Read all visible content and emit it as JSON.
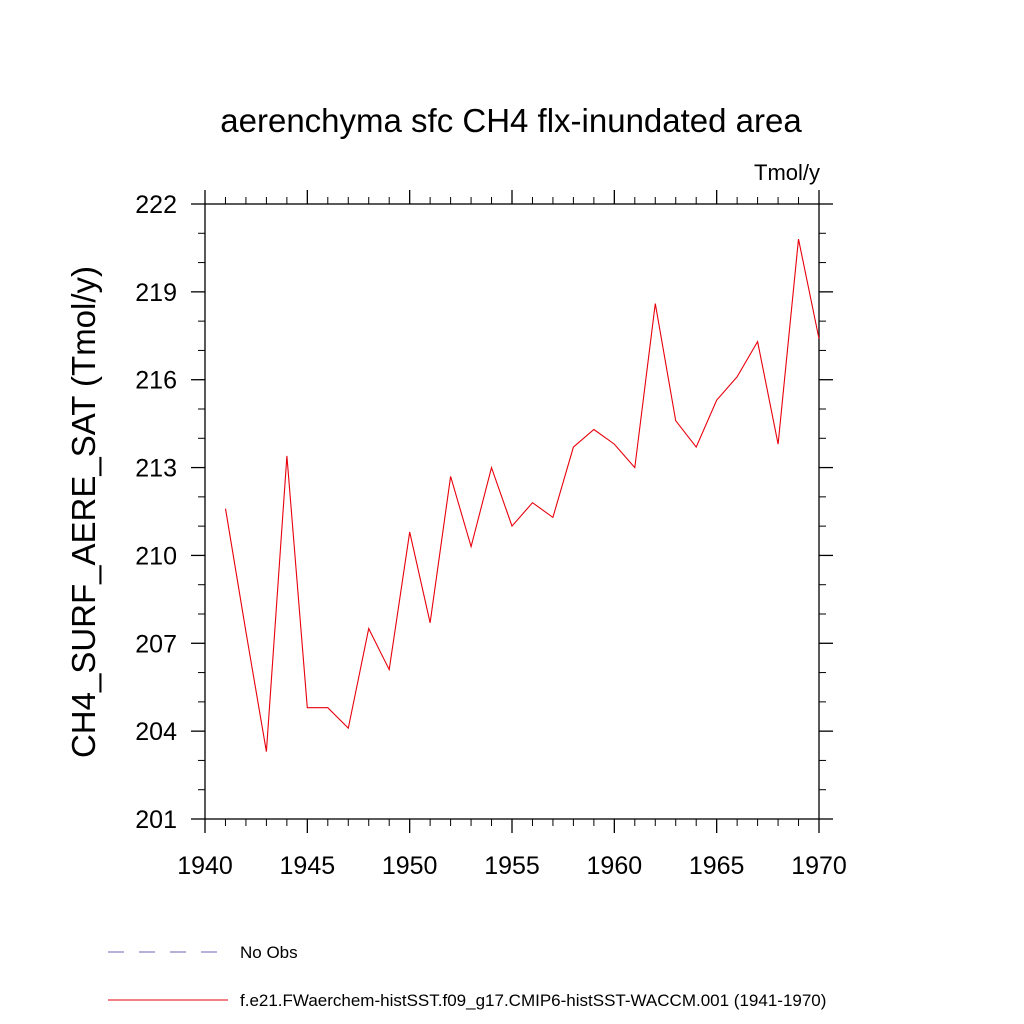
{
  "chart_data": {
    "type": "line",
    "title": "aerenchyma sfc CH4 flx-inundated area",
    "units_label": "Tmol/y",
    "ylabel": "CH4_SURF_AERE_SAT  (Tmol/y)",
    "xlabel": "",
    "xlim": [
      1940,
      1970
    ],
    "ylim": [
      201,
      222
    ],
    "x_ticks": [
      "1940",
      "1945",
      "1950",
      "1955",
      "1960",
      "1965",
      "1970"
    ],
    "y_ticks": [
      "201",
      "204",
      "207",
      "210",
      "213",
      "216",
      "219",
      "222"
    ],
    "grid": false,
    "series": [
      {
        "name": "f.e21.FWaerchem-histSST.f09_g17.CMIP6-histSST-WACCM.001 (1941-1970)",
        "color": "#e8000b",
        "style": "solid",
        "x": [
          1941,
          1942,
          1943,
          1944,
          1945,
          1946,
          1947,
          1948,
          1949,
          1950,
          1951,
          1952,
          1953,
          1954,
          1955,
          1956,
          1957,
          1958,
          1959,
          1960,
          1961,
          1962,
          1963,
          1964,
          1965,
          1966,
          1967,
          1968,
          1969,
          1970
        ],
        "y": [
          211.6,
          207.4,
          203.3,
          213.4,
          204.8,
          204.8,
          204.1,
          207.5,
          206.1,
          210.8,
          207.7,
          212.7,
          210.3,
          213.0,
          211.0,
          211.8,
          211.3,
          213.7,
          214.3,
          213.8,
          213.0,
          218.6,
          214.6,
          213.7,
          215.3,
          216.1,
          217.3,
          213.8,
          220.8,
          217.4
        ]
      }
    ],
    "legend": {
      "placement": "bottom",
      "items": [
        {
          "label": "No Obs",
          "color": "#6b63b5",
          "style": "dashed"
        },
        {
          "label": "f.e21.FWaerchem-histSST.f09_g17.CMIP6-histSST-WACCM.001 (1941-1970)",
          "color": "#e8000b",
          "style": "solid"
        }
      ]
    }
  }
}
